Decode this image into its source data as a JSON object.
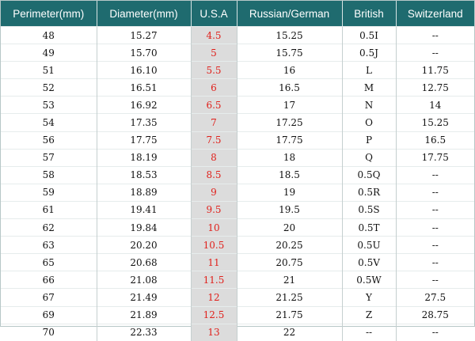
{
  "colors": {
    "header_bg": "#1f6b6f",
    "header_text": "#ffffff",
    "usa_col_bg": "#dcdcdc",
    "usa_col_text": "#e0201b"
  },
  "table": {
    "headers": [
      "Perimeter(mm)",
      "Diameter(mm)",
      "U.S.A",
      "Russian/German",
      "British",
      "Switzerland"
    ],
    "rows": [
      [
        "48",
        "15.27",
        "4.5",
        "15.25",
        "0.5I",
        "--"
      ],
      [
        "49",
        "15.70",
        "5",
        "15.75",
        "0.5J",
        "--"
      ],
      [
        "51",
        "16.10",
        "5.5",
        "16",
        "L",
        "11.75"
      ],
      [
        "52",
        "16.51",
        "6",
        "16.5",
        "M",
        "12.75"
      ],
      [
        "53",
        "16.92",
        "6.5",
        "17",
        "N",
        "14"
      ],
      [
        "54",
        "17.35",
        "7",
        "17.25",
        "O",
        "15.25"
      ],
      [
        "56",
        "17.75",
        "7.5",
        "17.75",
        "P",
        "16.5"
      ],
      [
        "57",
        "18.19",
        "8",
        "18",
        "Q",
        "17.75"
      ],
      [
        "58",
        "18.53",
        "8.5",
        "18.5",
        "0.5Q",
        "--"
      ],
      [
        "59",
        "18.89",
        "9",
        "19",
        "0.5R",
        "--"
      ],
      [
        "61",
        "19.41",
        "9.5",
        "19.5",
        "0.5S",
        "--"
      ],
      [
        "62",
        "19.84",
        "10",
        "20",
        "0.5T",
        "--"
      ],
      [
        "63",
        "20.20",
        "10.5",
        "20.25",
        "0.5U",
        "--"
      ],
      [
        "65",
        "20.68",
        "11",
        "20.75",
        "0.5V",
        "--"
      ],
      [
        "66",
        "21.08",
        "11.5",
        "21",
        "0.5W",
        "--"
      ],
      [
        "67",
        "21.49",
        "12",
        "21.25",
        "Y",
        "27.5"
      ],
      [
        "69",
        "21.89",
        "12.5",
        "21.75",
        "Z",
        "28.75"
      ],
      [
        "70",
        "22.33",
        "13",
        "22",
        "--",
        "--"
      ]
    ]
  }
}
